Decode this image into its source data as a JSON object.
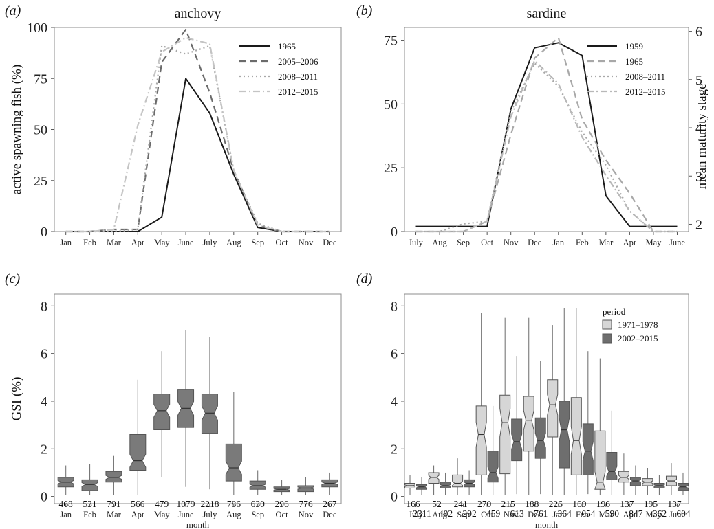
{
  "chart_data": [
    {
      "id": "a",
      "panel_label": "(a)",
      "type": "line",
      "title": "anchovy",
      "ylabel": "active spawning fish (%)",
      "xlabel": "",
      "categories": [
        "Jan",
        "Feb",
        "Mar",
        "Apr",
        "May",
        "June",
        "July",
        "Aug",
        "Sep",
        "Oct",
        "Nov",
        "Dec"
      ],
      "ylim": [
        0,
        100
      ],
      "yticks": [
        0,
        25,
        50,
        75,
        100
      ],
      "grid": false,
      "legend": "top-right",
      "series": [
        {
          "name": "1965",
          "color": "#1a1a1a",
          "dash": "",
          "width": 2,
          "values": [
            0,
            0,
            0,
            0,
            7,
            75,
            58,
            28,
            2,
            0,
            0,
            0
          ]
        },
        {
          "name": "2005–2006",
          "color": "#6b6b6b",
          "dash": "10,6",
          "width": 2.2,
          "values": [
            0,
            0,
            1,
            1,
            83,
            99,
            68,
            30,
            3,
            0,
            0,
            0
          ]
        },
        {
          "name": "2008–2011",
          "color": "#a8a8a8",
          "dash": "2,4",
          "width": 2.2,
          "values": [
            0,
            0,
            0,
            1,
            91,
            87,
            91,
            30,
            4,
            0,
            0,
            0
          ]
        },
        {
          "name": "2012–2015",
          "color": "#c4c4c4",
          "dash": "10,4,2,4",
          "width": 2.2,
          "values": [
            0,
            0,
            1,
            52,
            88,
            95,
            92,
            30,
            3,
            0,
            0,
            0
          ]
        }
      ]
    },
    {
      "id": "b",
      "panel_label": "(b)",
      "type": "line",
      "title": "sardine",
      "ylabel": "",
      "y2label": "mean maturity stage",
      "xlabel": "",
      "categories": [
        "July",
        "Aug",
        "Sep",
        "Oct",
        "Nov",
        "Dec",
        "Jan",
        "Feb",
        "Mar",
        "Apr",
        "May",
        "June"
      ],
      "ylim": [
        0,
        80
      ],
      "yticks": [
        0,
        25,
        50,
        75
      ],
      "y2lim": [
        1.85,
        6.08
      ],
      "y2ticks": [
        2,
        3,
        4,
        5,
        6
      ],
      "grid": false,
      "legend": "top-right",
      "series": [
        {
          "name": "1959",
          "color": "#1a1a1a",
          "dash": "",
          "width": 2,
          "values": [
            2,
            2,
            2,
            2,
            48,
            72,
            74,
            69,
            14,
            2,
            2,
            2
          ]
        },
        {
          "name": "1965",
          "color": "#a8a8a8",
          "dash": "10,6",
          "width": 2.2,
          "values": [
            0,
            0,
            0,
            4,
            38,
            68,
            76,
            44,
            28,
            15,
            0,
            0
          ]
        },
        {
          "name": "2008–2011",
          "color": "#a8a8a8",
          "dash": "2,4",
          "width": 2.2,
          "values": [
            0,
            0,
            3,
            4,
            47,
            66,
            57,
            39,
            26,
            8,
            0,
            0
          ]
        },
        {
          "name": "2012–2015",
          "color": "#b8b8b8",
          "dash": "10,4,2,4",
          "width": 2.2,
          "values": [
            0,
            0,
            0,
            4,
            45,
            67,
            58,
            37,
            22,
            8,
            0,
            0
          ]
        }
      ]
    },
    {
      "id": "c",
      "panel_label": "(c)",
      "type": "box",
      "title": "",
      "ylabel": "GSI (%)",
      "xlabel": "month",
      "categories": [
        "Jan",
        "Feb",
        "Mar",
        "Apr",
        "May",
        "June",
        "July",
        "Aug",
        "Sep",
        "Oct",
        "Nov",
        "Dec"
      ],
      "ylim": [
        -0.3,
        8.5
      ],
      "yticks": [
        0,
        2,
        4,
        6,
        8
      ],
      "grid": false,
      "fill": "#7a7a7a",
      "counts": [
        "468",
        "531",
        "791",
        "566",
        "479",
        "1079",
        "2218",
        "786",
        "630",
        "296",
        "776",
        "267"
      ],
      "boxes": [
        {
          "min": 0.05,
          "q1": 0.4,
          "med": 0.6,
          "q3": 0.8,
          "max": 1.3
        },
        {
          "min": 0.05,
          "q1": 0.25,
          "med": 0.5,
          "q3": 0.7,
          "max": 1.35
        },
        {
          "min": 0.05,
          "q1": 0.6,
          "med": 0.8,
          "q3": 1.05,
          "max": 1.7
        },
        {
          "min": 0.05,
          "q1": 1.1,
          "med": 1.5,
          "q3": 2.6,
          "max": 4.9
        },
        {
          "min": 0.8,
          "q1": 2.8,
          "med": 3.6,
          "q3": 4.3,
          "max": 6.1
        },
        {
          "min": 0.4,
          "q1": 2.9,
          "med": 3.7,
          "q3": 4.5,
          "max": 7.0
        },
        {
          "min": 0.3,
          "q1": 2.65,
          "med": 3.5,
          "q3": 4.3,
          "max": 6.7
        },
        {
          "min": 0.05,
          "q1": 0.65,
          "med": 1.2,
          "q3": 2.2,
          "max": 4.4
        },
        {
          "min": 0.05,
          "q1": 0.3,
          "med": 0.45,
          "q3": 0.65,
          "max": 1.1
        },
        {
          "min": 0.05,
          "q1": 0.2,
          "med": 0.3,
          "q3": 0.4,
          "max": 0.7
        },
        {
          "min": 0.05,
          "q1": 0.2,
          "med": 0.35,
          "q3": 0.45,
          "max": 0.8
        },
        {
          "min": 0.05,
          "q1": 0.4,
          "med": 0.55,
          "q3": 0.7,
          "max": 1.0
        }
      ]
    },
    {
      "id": "d",
      "panel_label": "(d)",
      "type": "box",
      "title": "",
      "ylabel": "",
      "xlabel": "month",
      "categories": [
        "July",
        "Aug",
        "Sep",
        "Oct",
        "Nov",
        "Dec",
        "Jan",
        "Feb",
        "Mar",
        "Apr",
        "May",
        "June"
      ],
      "ylim": [
        -0.3,
        8.5
      ],
      "yticks": [
        0,
        2,
        4,
        6,
        8
      ],
      "grid": false,
      "legend": "top-right",
      "legend_title": "period",
      "series": [
        {
          "name": "1971–1978",
          "fill": "#d6d6d6",
          "counts": [
            "166",
            "52",
            "241",
            "270",
            "215",
            "188",
            "226",
            "169",
            "196",
            "137",
            "195",
            "137"
          ],
          "boxes": [
            {
              "min": 0.05,
              "q1": 0.35,
              "med": 0.45,
              "q3": 0.55,
              "max": 0.9
            },
            {
              "min": 0.05,
              "q1": 0.55,
              "med": 0.8,
              "q3": 1.0,
              "max": 1.3
            },
            {
              "min": 0.05,
              "q1": 0.4,
              "med": 0.55,
              "q3": 0.9,
              "max": 1.6
            },
            {
              "min": 0.05,
              "q1": 0.9,
              "med": 2.6,
              "q3": 3.8,
              "max": 7.7
            },
            {
              "min": 0.05,
              "q1": 0.95,
              "med": 3.1,
              "q3": 4.25,
              "max": 7.5
            },
            {
              "min": 0.05,
              "q1": 1.9,
              "med": 3.2,
              "q3": 4.2,
              "max": 7.5
            },
            {
              "min": 0.05,
              "q1": 2.5,
              "med": 3.85,
              "q3": 4.9,
              "max": 7.2
            },
            {
              "min": 0.05,
              "q1": 0.9,
              "med": 2.35,
              "q3": 4.15,
              "max": 7.9
            },
            {
              "min": 0.05,
              "q1": 0.3,
              "med": 0.6,
              "q3": 2.75,
              "max": 5.8
            },
            {
              "min": 0.05,
              "q1": 0.6,
              "med": 0.8,
              "q3": 1.05,
              "max": 1.8
            },
            {
              "min": 0.05,
              "q1": 0.45,
              "med": 0.6,
              "q3": 0.75,
              "max": 1.2
            },
            {
              "min": 0.05,
              "q1": 0.45,
              "med": 0.65,
              "q3": 0.85,
              "max": 1.4
            }
          ]
        },
        {
          "name": "2002–2015",
          "fill": "#6e6e6e",
          "counts": [
            "2311",
            "402",
            "292",
            "459",
            "613",
            "761",
            "364",
            "654",
            "590",
            "847",
            "362",
            "604"
          ],
          "boxes": [
            {
              "min": 0.05,
              "q1": 0.3,
              "med": 0.4,
              "q3": 0.5,
              "max": 0.8
            },
            {
              "min": 0.05,
              "q1": 0.35,
              "med": 0.45,
              "q3": 0.6,
              "max": 1.0
            },
            {
              "min": 0.05,
              "q1": 0.4,
              "med": 0.55,
              "q3": 0.7,
              "max": 1.1
            },
            {
              "min": 0.05,
              "q1": 0.6,
              "med": 1.0,
              "q3": 1.9,
              "max": 3.8
            },
            {
              "min": 0.1,
              "q1": 1.5,
              "med": 2.3,
              "q3": 3.25,
              "max": 5.9
            },
            {
              "min": 0.1,
              "q1": 1.6,
              "med": 2.35,
              "q3": 3.3,
              "max": 5.7
            },
            {
              "min": 0.05,
              "q1": 1.2,
              "med": 2.8,
              "q3": 4.0,
              "max": 7.9
            },
            {
              "min": 0.1,
              "q1": 0.9,
              "med": 1.9,
              "q3": 3.05,
              "max": 6.1
            },
            {
              "min": 0.05,
              "q1": 0.7,
              "med": 1.05,
              "q3": 1.85,
              "max": 3.6
            },
            {
              "min": 0.05,
              "q1": 0.45,
              "med": 0.65,
              "q3": 0.8,
              "max": 1.3
            },
            {
              "min": 0.05,
              "q1": 0.35,
              "med": 0.45,
              "q3": 0.55,
              "max": 0.9
            },
            {
              "min": 0.05,
              "q1": 0.25,
              "med": 0.4,
              "q3": 0.55,
              "max": 1.0
            }
          ]
        }
      ]
    }
  ]
}
